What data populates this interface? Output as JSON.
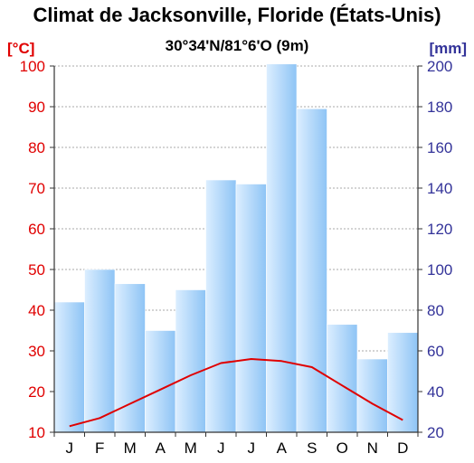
{
  "title": "Climat de Jacksonville, Floride (États-Unis)",
  "subtitle": "30°34'N/81°6'O (9m)",
  "chart_data": {
    "type": "bar",
    "categories": [
      "J",
      "F",
      "M",
      "A",
      "M",
      "J",
      "J",
      "A",
      "S",
      "O",
      "N",
      "D"
    ],
    "series": [
      {
        "type": "bar",
        "axis": "right",
        "values": [
          84,
          100,
          93,
          70,
          90,
          144,
          142,
          201,
          179,
          73,
          56,
          69
        ]
      },
      {
        "type": "line",
        "axis": "left",
        "values": [
          11.5,
          13.5,
          17.0,
          20.5,
          24.0,
          27.0,
          28.0,
          27.5,
          26.0,
          21.5,
          17.0,
          13.0
        ]
      }
    ],
    "ylabel_left": "[°C]",
    "ylabel_right": "[mm]",
    "ylim_left": [
      10,
      100
    ],
    "ylim_right": [
      20,
      200
    ],
    "yticks_left": [
      "10",
      "20",
      "30",
      "40",
      "50",
      "60",
      "70",
      "80",
      "90",
      "100"
    ],
    "yticks_right": [
      "20",
      "40",
      "60",
      "80",
      "100",
      "120",
      "140",
      "160",
      "180",
      "200"
    ],
    "grid": true,
    "colors": {
      "temperature": "#e00000",
      "precipitation_axis": "#333399",
      "bar_light": "#dceeff",
      "bar_dark": "#8ec4f5"
    }
  }
}
